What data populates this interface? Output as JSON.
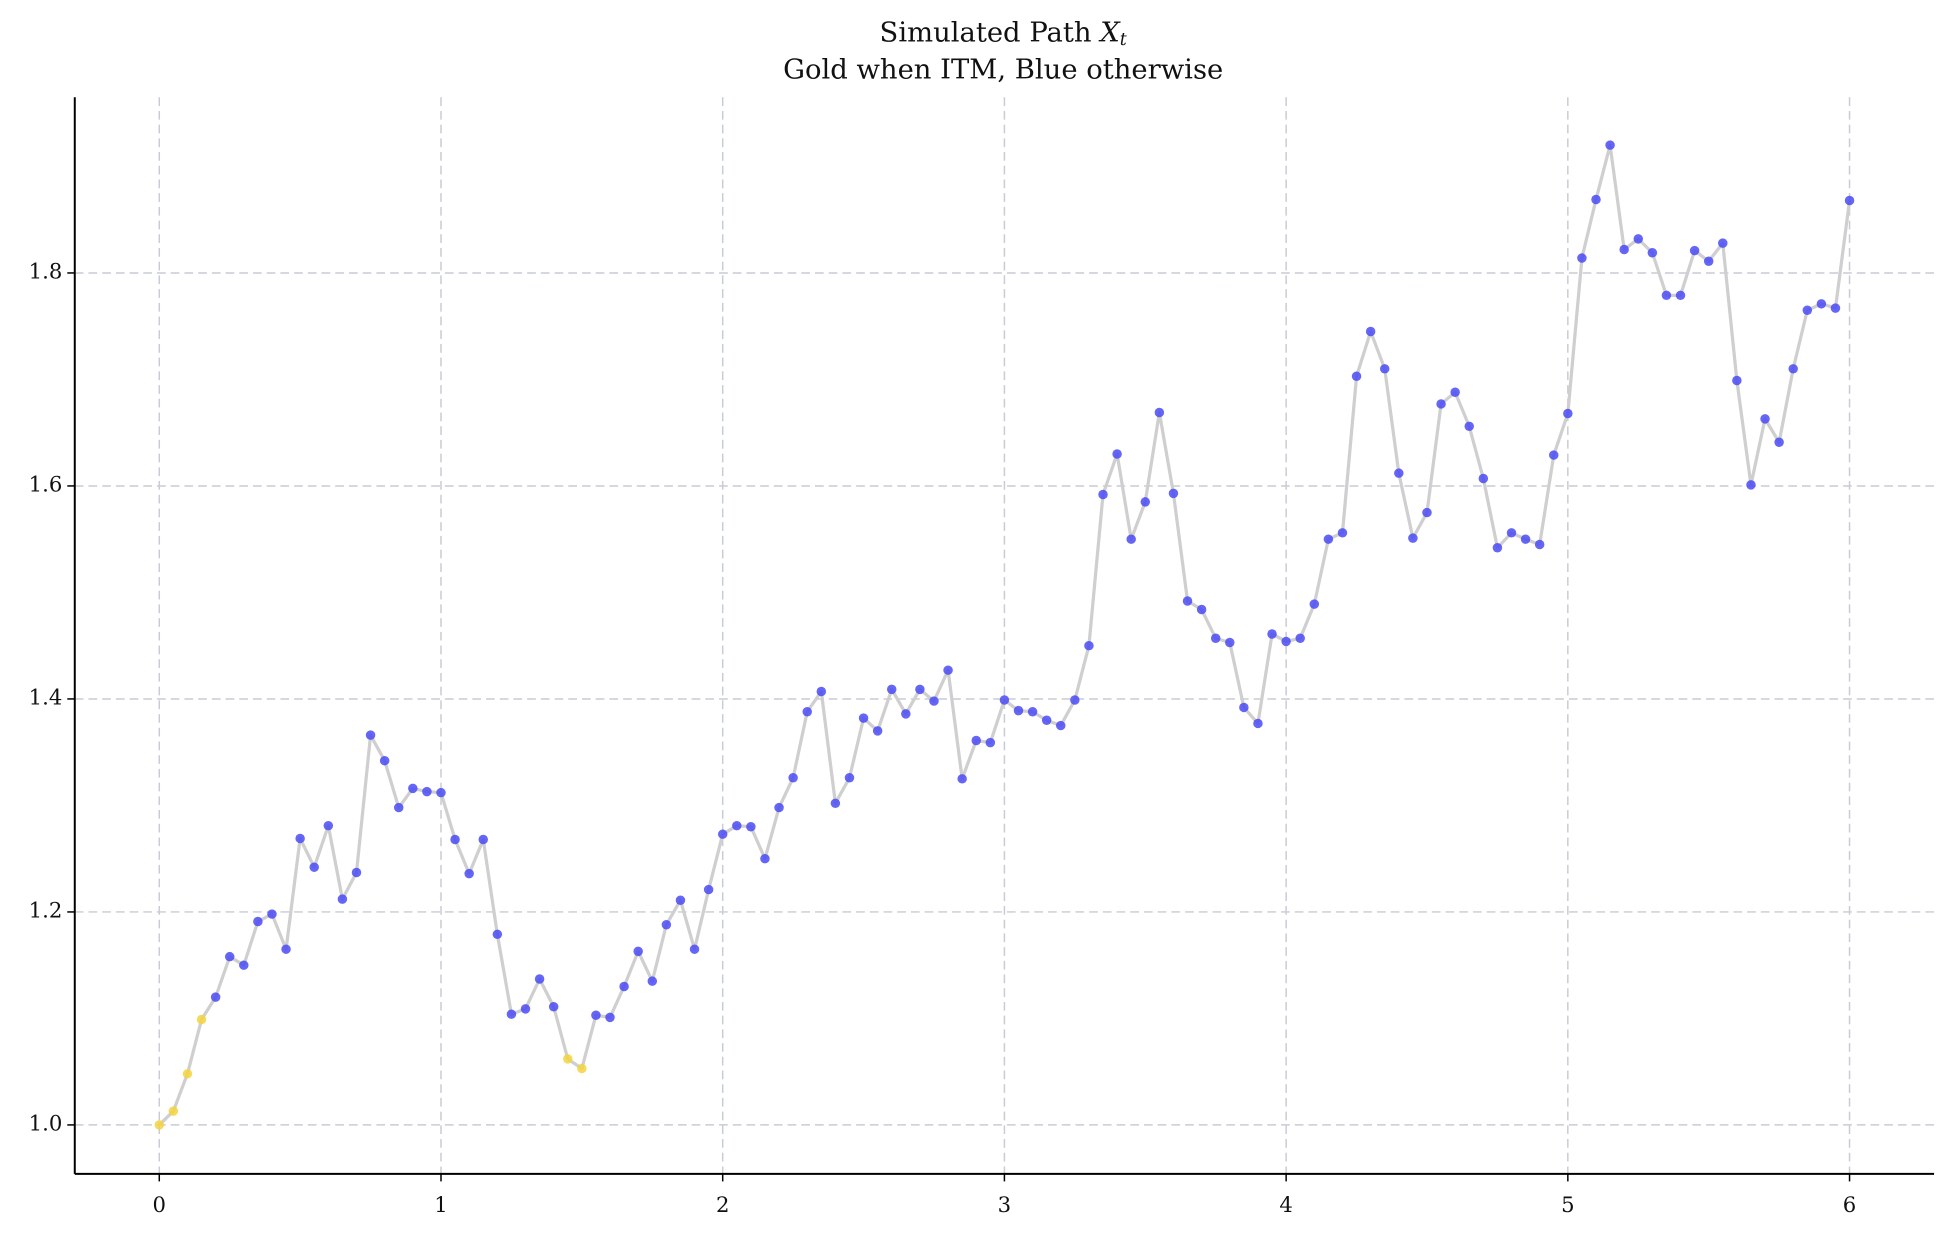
{
  "chart_data": {
    "type": "line",
    "title": "Simulated Path",
    "title_symbol": "X",
    "title_subscript": "t",
    "subtitle": "Gold when ITM, Blue otherwise",
    "x": [
      0,
      0.05,
      0.1,
      0.15,
      0.2,
      0.25,
      0.3,
      0.35,
      0.4,
      0.45,
      0.5,
      0.55,
      0.6,
      0.65,
      0.7,
      0.75,
      0.8,
      0.85,
      0.9,
      0.95,
      1,
      1.05,
      1.1,
      1.15,
      1.2,
      1.25,
      1.3,
      1.35,
      1.4,
      1.45,
      1.5,
      1.55,
      1.6,
      1.65,
      1.7,
      1.75,
      1.8,
      1.85,
      1.9,
      1.95,
      2,
      2.05,
      2.1,
      2.15,
      2.2,
      2.25,
      2.3,
      2.35,
      2.4,
      2.45,
      2.5,
      2.55,
      2.6,
      2.65,
      2.7,
      2.75,
      2.8,
      2.85,
      2.9,
      2.95,
      3,
      3.05,
      3.1,
      3.15,
      3.2,
      3.25,
      3.3,
      3.35,
      3.4,
      3.45,
      3.5,
      3.55,
      3.6,
      3.65,
      3.7,
      3.75,
      3.8,
      3.85,
      3.9,
      3.95,
      4,
      4.05,
      4.1,
      4.15,
      4.2,
      4.25,
      4.3,
      4.35,
      4.4,
      4.45,
      4.5,
      4.55,
      4.6,
      4.65,
      4.7,
      4.75,
      4.8,
      4.85,
      4.9,
      4.95,
      5,
      5.05,
      5.1,
      5.15,
      5.2,
      5.25,
      5.3,
      5.35,
      5.4,
      5.45,
      5.5,
      5.55,
      5.6,
      5.65,
      5.7,
      5.75,
      5.8,
      5.85,
      5.9,
      5.95,
      6
    ],
    "values": [
      1.0,
      1.013,
      1.048,
      1.099,
      1.12,
      1.158,
      1.15,
      1.191,
      1.198,
      1.165,
      1.269,
      1.242,
      1.281,
      1.212,
      1.237,
      1.366,
      1.342,
      1.298,
      1.316,
      1.313,
      1.312,
      1.268,
      1.236,
      1.268,
      1.179,
      1.104,
      1.109,
      1.137,
      1.111,
      1.062,
      1.053,
      1.103,
      1.101,
      1.13,
      1.163,
      1.135,
      1.188,
      1.211,
      1.165,
      1.221,
      1.273,
      1.281,
      1.28,
      1.25,
      1.298,
      1.326,
      1.388,
      1.407,
      1.302,
      1.326,
      1.382,
      1.37,
      1.409,
      1.386,
      1.409,
      1.398,
      1.427,
      1.325,
      1.361,
      1.359,
      1.399,
      1.389,
      1.388,
      1.38,
      1.375,
      1.399,
      1.45,
      1.592,
      1.63,
      1.55,
      1.585,
      1.669,
      1.593,
      1.492,
      1.484,
      1.457,
      1.453,
      1.392,
      1.377,
      1.461,
      1.454,
      1.457,
      1.489,
      1.55,
      1.556,
      1.703,
      1.745,
      1.71,
      1.612,
      1.551,
      1.575,
      1.677,
      1.688,
      1.656,
      1.607,
      1.542,
      1.556,
      1.55,
      1.545,
      1.629,
      1.668,
      1.814,
      1.869,
      1.92,
      1.822,
      1.832,
      1.819,
      1.779,
      1.779,
      1.821,
      1.811,
      1.828,
      1.699,
      1.601,
      1.663,
      1.641,
      1.71,
      1.765,
      1.771,
      1.767,
      1.868
    ],
    "itm": [
      true,
      true,
      true,
      true,
      false,
      false,
      false,
      false,
      false,
      false,
      false,
      false,
      false,
      false,
      false,
      false,
      false,
      false,
      false,
      false,
      false,
      false,
      false,
      false,
      false,
      false,
      false,
      false,
      false,
      true,
      true,
      false,
      false,
      false,
      false,
      false,
      false,
      false,
      false,
      false,
      false,
      false,
      false,
      false,
      false,
      false,
      false,
      false,
      false,
      false,
      false,
      false,
      false,
      false,
      false,
      false,
      false,
      false,
      false,
      false,
      false,
      false,
      false,
      false,
      false,
      false,
      false,
      false,
      false,
      false,
      false,
      false,
      false,
      false,
      false,
      false,
      false,
      false,
      false,
      false,
      false,
      false,
      false,
      false,
      false,
      false,
      false,
      false,
      false,
      false,
      false,
      false,
      false,
      false,
      false,
      false,
      false,
      false,
      false,
      false,
      false,
      false,
      false,
      false,
      false,
      false,
      false,
      false,
      false,
      false,
      false,
      false,
      false,
      false,
      false,
      false,
      false,
      false,
      false,
      false,
      false
    ],
    "line_color": "#cfcfcf",
    "itm_color": "#f5d33f",
    "otm_color": "#4a4af5",
    "xlim": [
      -0.3,
      6.3
    ],
    "ylim": [
      0.954,
      1.965
    ],
    "xticks": [
      0,
      1,
      2,
      3,
      4,
      5,
      6
    ],
    "yticks": [
      {
        "value": 1.0,
        "label": "1.0"
      },
      {
        "value": 1.2,
        "label": "1.2"
      },
      {
        "value": 1.4,
        "label": "1.4"
      },
      {
        "value": 1.6,
        "label": "1.6"
      },
      {
        "value": 1.8,
        "label": "1.8"
      }
    ],
    "grid": true
  }
}
